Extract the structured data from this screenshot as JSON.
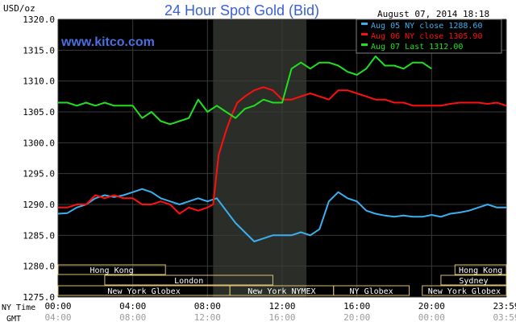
{
  "header": {
    "unit": "USD/oz",
    "title": "24 Hour Spot Gold (Bid)",
    "date": "August 07, 2014 18:18",
    "watermark": "www.kitco.com"
  },
  "colors": {
    "background": "#000000",
    "text": "#000000",
    "title": "#3b5fd6",
    "watermark": "#4a6fe0",
    "grid": "#3a3a3a",
    "shade": "#2a2d28",
    "series": [
      "#3ab0f0",
      "#ff1010",
      "#20e020"
    ],
    "session_box": "#d8c070",
    "session_text": "#ffffff"
  },
  "chart_data": {
    "type": "line",
    "ylim": [
      1275,
      1320
    ],
    "xlim": [
      0,
      24
    ],
    "y_ticks": [
      "1320.0",
      "1315.0",
      "1310.0",
      "1305.0",
      "1300.0",
      "1295.0",
      "1290.0",
      "1285.0",
      "1280.0",
      "1275.0"
    ],
    "x_ticks_ny": [
      "00:00",
      "04:00",
      "08:00",
      "12:00",
      "16:00",
      "20:00",
      "23:59"
    ],
    "x_ticks_gmt": [
      "04:00",
      "08:00",
      "12:00",
      "16:00",
      "20:00",
      "00:00",
      "03:59"
    ],
    "x_label_ny": "NY Time",
    "x_label_gmt": "GMT",
    "grid": true,
    "shaded_range": [
      8.3,
      13.3
    ],
    "legend_position": "top-right",
    "series": [
      {
        "name": "Aug 05 NY close 1288.60",
        "x": [
          0,
          0.5,
          1,
          1.5,
          2,
          2.5,
          3,
          3.5,
          4,
          4.5,
          5,
          5.5,
          6,
          6.5,
          7,
          7.5,
          8,
          8.5,
          9,
          9.5,
          10,
          10.5,
          11,
          11.5,
          12,
          12.5,
          13,
          13.5,
          14,
          14.5,
          15,
          15.5,
          16,
          16.5,
          17,
          17.5,
          18,
          18.5,
          19,
          19.5,
          20,
          20.5,
          21,
          21.5,
          22,
          22.5,
          23,
          23.5,
          24
        ],
        "y": [
          1288.5,
          1288.6,
          1289.5,
          1290.0,
          1291.0,
          1291.5,
          1291.2,
          1291.5,
          1292.0,
          1292.5,
          1292.0,
          1291.0,
          1290.5,
          1290.0,
          1290.5,
          1291.0,
          1290.5,
          1291.0,
          1289.0,
          1287.0,
          1285.5,
          1284.0,
          1284.5,
          1285.0,
          1285.0,
          1285.0,
          1285.5,
          1285.0,
          1286.0,
          1290.5,
          1292.0,
          1291.0,
          1290.5,
          1289.0,
          1288.5,
          1288.2,
          1288.0,
          1288.2,
          1288.0,
          1288.0,
          1288.3,
          1288.0,
          1288.5,
          1288.7,
          1289.0,
          1289.5,
          1290.0,
          1289.5,
          1289.5
        ]
      },
      {
        "name": "Aug 06 NY close 1305.90",
        "x": [
          0,
          0.5,
          1,
          1.5,
          2,
          2.5,
          3,
          3.5,
          4,
          4.5,
          5,
          5.5,
          6,
          6.5,
          7,
          7.5,
          8,
          8.3,
          8.6,
          9,
          9.3,
          9.6,
          10,
          10.5,
          11,
          11.5,
          12,
          12.5,
          13,
          13.5,
          14,
          14.5,
          15,
          15.5,
          16,
          16.5,
          17,
          17.5,
          18,
          18.5,
          19,
          19.5,
          20,
          20.5,
          21,
          21.5,
          22,
          22.5,
          23,
          23.5,
          24
        ],
        "y": [
          1289.5,
          1289.5,
          1290.0,
          1290.0,
          1291.5,
          1291.0,
          1291.5,
          1291.0,
          1291.0,
          1290.0,
          1290.0,
          1290.5,
          1290.0,
          1288.5,
          1289.5,
          1289.0,
          1289.5,
          1290.0,
          1298.0,
          1302.0,
          1304.5,
          1306.5,
          1307.5,
          1308.5,
          1309.0,
          1308.5,
          1307.0,
          1307.0,
          1307.5,
          1308.0,
          1307.5,
          1307.0,
          1308.5,
          1308.5,
          1308.0,
          1307.5,
          1307.0,
          1307.0,
          1306.5,
          1306.5,
          1306.0,
          1306.0,
          1306.0,
          1306.0,
          1306.3,
          1306.5,
          1306.5,
          1306.5,
          1306.3,
          1306.5,
          1306.0
        ]
      },
      {
        "name": "Aug 07 Last 1312.00",
        "x": [
          0,
          0.5,
          1,
          1.5,
          2,
          2.5,
          3,
          3.5,
          4,
          4.5,
          5,
          5.5,
          6,
          6.5,
          7,
          7.5,
          8,
          8.5,
          9,
          9.5,
          10,
          10.5,
          11,
          11.5,
          12,
          12.5,
          13,
          13.5,
          14,
          14.5,
          15,
          15.5,
          16,
          16.5,
          17,
          17.5,
          18,
          18.5,
          19,
          19.5,
          20
        ],
        "y": [
          1306.5,
          1306.5,
          1306.0,
          1306.5,
          1306.0,
          1306.5,
          1306.0,
          1306.0,
          1306.0,
          1304.0,
          1305.0,
          1303.5,
          1303.0,
          1303.5,
          1304.0,
          1307.0,
          1305.0,
          1306.0,
          1305.0,
          1304.0,
          1305.5,
          1306.0,
          1307.0,
          1306.5,
          1306.5,
          1312.0,
          1313.0,
          1312.0,
          1313.0,
          1313.0,
          1312.5,
          1311.5,
          1311.0,
          1312.0,
          1314.0,
          1312.5,
          1312.5,
          1312.0,
          1313.0,
          1313.0,
          1312.0
        ]
      }
    ],
    "sessions": [
      {
        "label": "Hong Kong",
        "row": 0,
        "x0": 0,
        "x1": 5.75
      },
      {
        "label": "London",
        "row": 1,
        "x0": 2.5,
        "x1": 11.5
      },
      {
        "label": "New York Globex",
        "row": 2,
        "x0": 0,
        "x1": 9.2
      },
      {
        "label": "New York NYMEX",
        "row": 2,
        "x0": 9.2,
        "x1": 14.75
      },
      {
        "label": "NY Globex",
        "row": 2,
        "x0": 14.75,
        "x1": 18.8
      },
      {
        "label": "Hong Kong",
        "row": 0,
        "x0": 21.25,
        "x1": 24
      },
      {
        "label": "Sydney",
        "row": 1,
        "x0": 20.5,
        "x1": 24
      },
      {
        "label": "New York Globex",
        "row": 2,
        "x0": 19.5,
        "x1": 24
      }
    ]
  }
}
